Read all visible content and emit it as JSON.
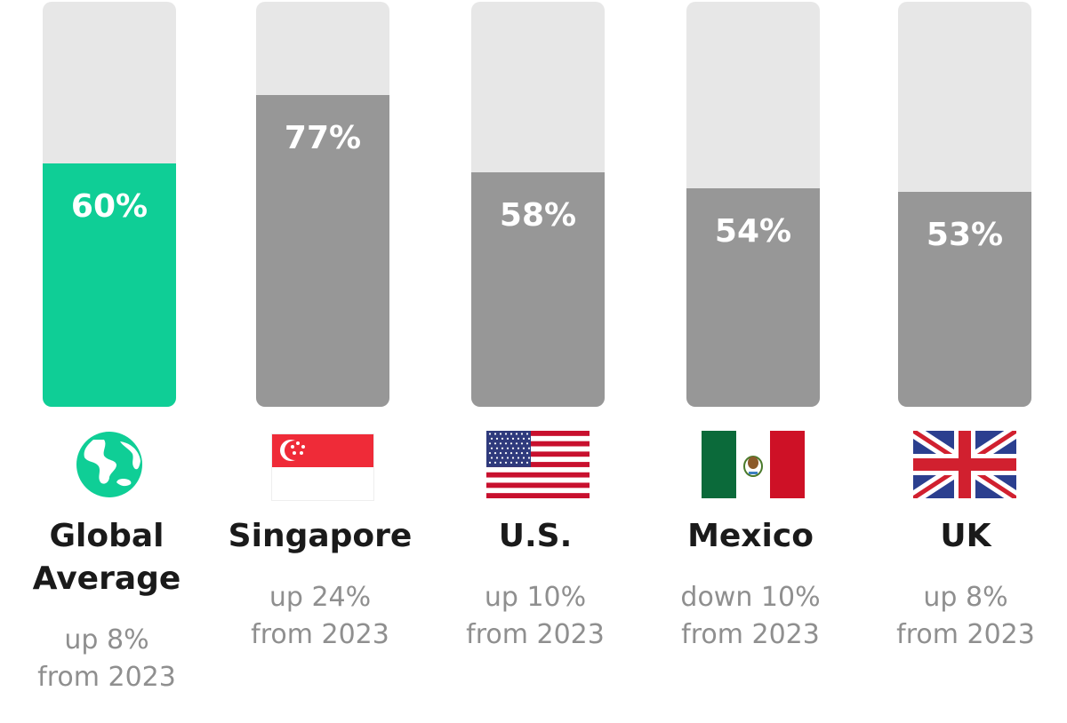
{
  "chart_data": {
    "type": "bar",
    "ylim": [
      0,
      100
    ],
    "highlight_color": "#0fce96",
    "bar_color": "#979797",
    "track_color": "#e7e7e7",
    "categories": [
      "Global Average",
      "Singapore",
      "U.S.",
      "Mexico",
      "UK"
    ],
    "values": [
      60,
      77,
      58,
      54,
      53
    ],
    "bars": [
      {
        "name_lines": [
          "Global",
          "Average"
        ],
        "value": 60,
        "label": "60%",
        "change_lines": [
          "up 8%",
          "from 2023"
        ],
        "icon": "globe-icon",
        "highlight": true
      },
      {
        "name_lines": [
          "Singapore"
        ],
        "value": 77,
        "label": "77%",
        "change_lines": [
          "up 24%",
          "from 2023"
        ],
        "icon": "singapore-flag-icon",
        "highlight": false
      },
      {
        "name_lines": [
          "U.S."
        ],
        "value": 58,
        "label": "58%",
        "change_lines": [
          "up 10%",
          "from 2023"
        ],
        "icon": "us-flag-icon",
        "highlight": false
      },
      {
        "name_lines": [
          "Mexico"
        ],
        "value": 54,
        "label": "54%",
        "change_lines": [
          "down 10%",
          "from 2023"
        ],
        "icon": "mexico-flag-icon",
        "highlight": false
      },
      {
        "name_lines": [
          "UK"
        ],
        "value": 53,
        "label": "53%",
        "change_lines": [
          "up 8%",
          "from 2023"
        ],
        "icon": "uk-flag-icon",
        "highlight": false
      }
    ]
  }
}
